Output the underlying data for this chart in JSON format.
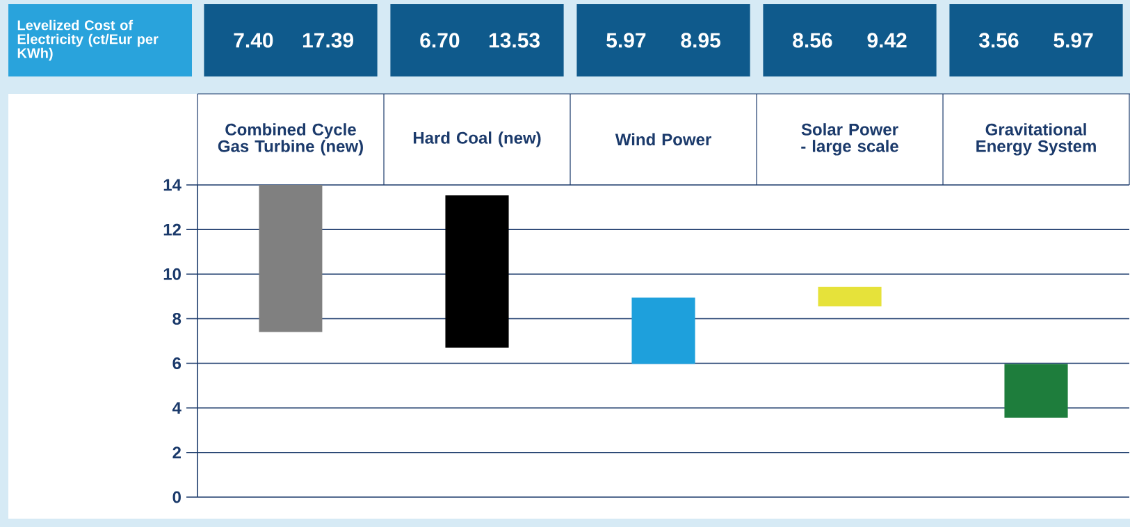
{
  "chart_data": {
    "type": "bar",
    "categories": [
      "Combined Cycle Gas Turbine (new)",
      "Hard Coal (new)",
      "Wind Power",
      "Solar Power - large scale",
      "Gravitational Energy System"
    ],
    "base": [
      7.4,
      6.7,
      5.97,
      8.56,
      3.56
    ],
    "values": [
      9.99,
      6.83,
      2.98,
      0.86,
      2.41
    ],
    "colors": [
      "#808080",
      "#000000",
      "#1ea0dc",
      "#e6e23a",
      "#1e7d3c"
    ],
    "annotations": [
      "Levelized Cost of Electricity (ct/Eur per KWh)",
      "7.40",
      "17.39",
      "6.70",
      "13.53",
      "5.97",
      "8.95",
      "8.56",
      "9.42",
      "3.56",
      "5.97"
    ],
    "ylim": [
      0,
      14
    ],
    "yticks": [
      0,
      2,
      4,
      6,
      8,
      10,
      12,
      14
    ],
    "grid": "y"
  }
}
